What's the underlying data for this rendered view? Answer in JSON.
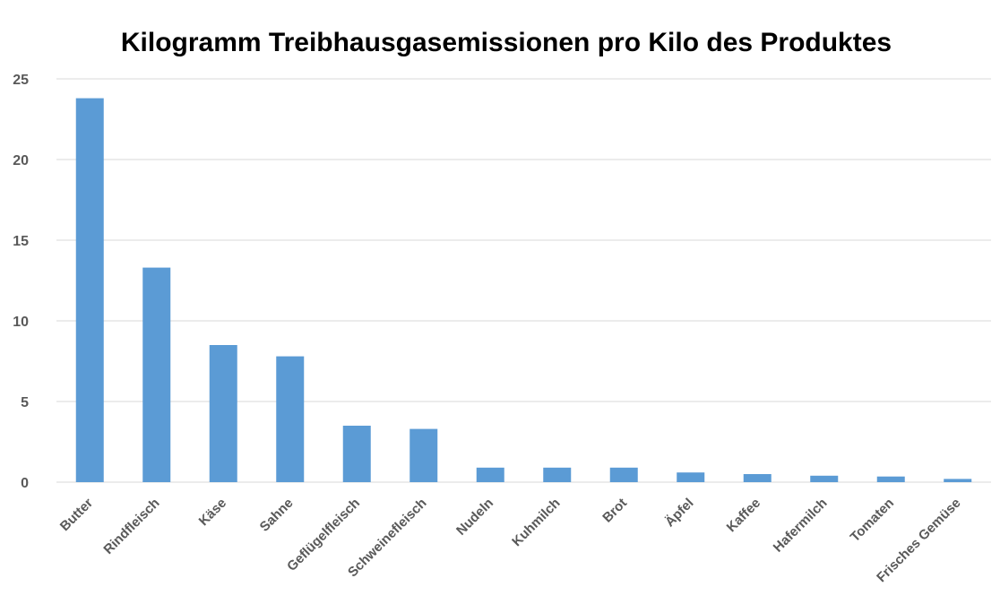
{
  "chart_data": {
    "type": "bar",
    "title": "Kilogramm Treibhausgasemissionen pro Kilo des Produktes",
    "xlabel": "",
    "ylabel": "",
    "categories": [
      "Butter",
      "Rindfleisch",
      "Käse",
      "Sahne",
      "Geflügelfleisch",
      "Schweinefleisch",
      "Nudeln",
      "Kuhmilch",
      "Brot",
      "Äpfel",
      "Kaffee",
      "Hafermilch",
      "Tomaten",
      "Frisches Gemüse"
    ],
    "values": [
      23.8,
      13.3,
      8.5,
      7.8,
      3.5,
      3.3,
      0.9,
      0.9,
      0.9,
      0.6,
      0.5,
      0.4,
      0.35,
      0.2
    ],
    "ylim": [
      0,
      25
    ],
    "yticks": [
      "0",
      "5",
      "10",
      "15",
      "20",
      "25"
    ],
    "grid": true,
    "legend": "none",
    "bar_color": "#5b9bd5"
  }
}
